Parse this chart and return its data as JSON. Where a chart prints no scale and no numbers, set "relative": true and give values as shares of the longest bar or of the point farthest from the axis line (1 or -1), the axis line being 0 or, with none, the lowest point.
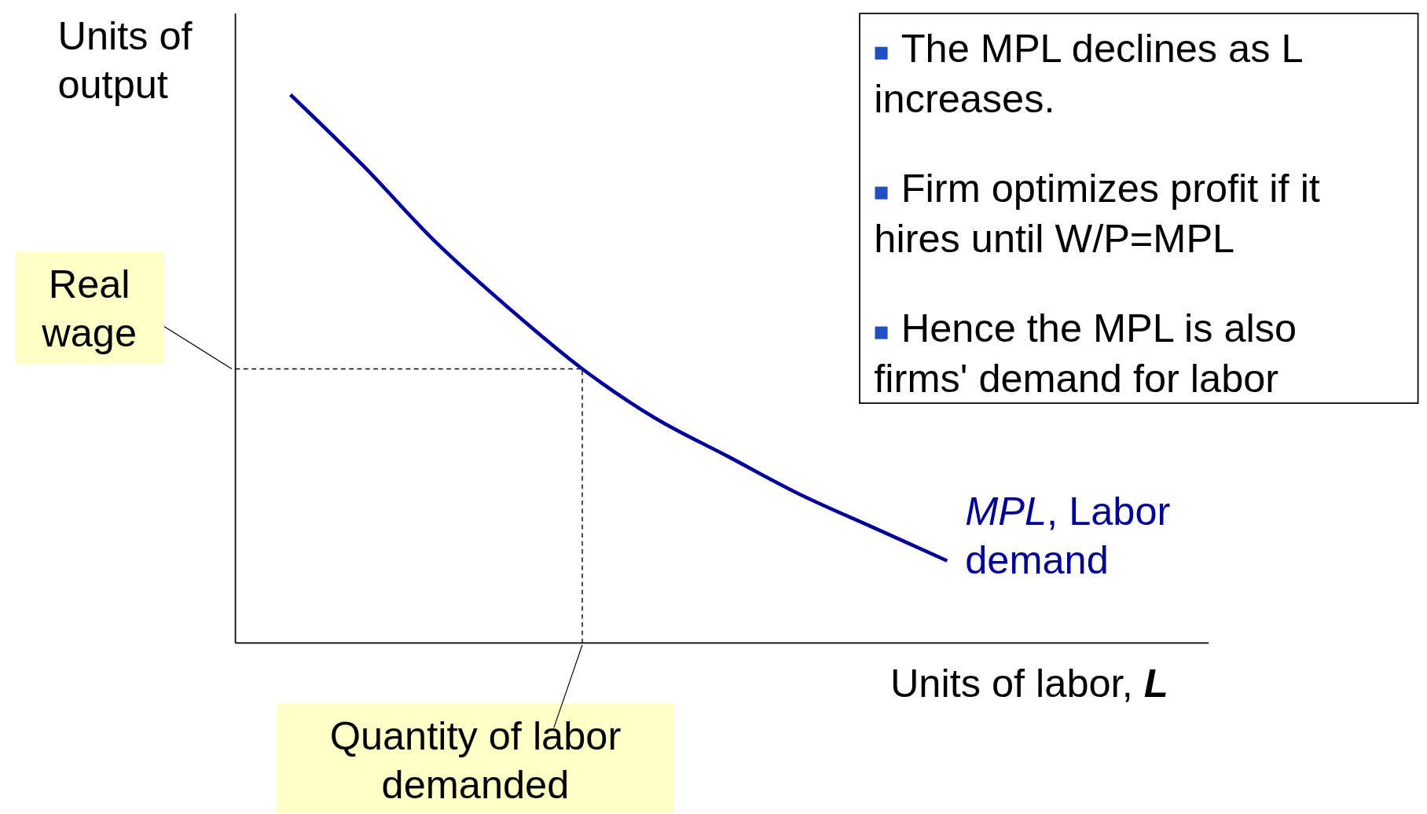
{
  "chart_data": {
    "type": "line",
    "relative": true,
    "ylabel": "Units of output",
    "xlabel": "Units of labor, L",
    "categories": [
      null,
      null,
      null,
      null,
      null,
      null,
      null,
      null,
      null,
      null
    ],
    "series": [
      {
        "name": "MPL, Labor demand",
        "color": "#000099",
        "values": [
          1,
          0.87,
          0.73,
          0.61,
          0.5,
          0.41,
          0.34,
          0.27,
          0.21,
          0.15
        ]
      }
    ],
    "ref_lines": [
      {
        "axis": "y",
        "value": 0.5,
        "label": "Real wage",
        "line_style": "dashed"
      }
    ],
    "annotations": [
      "Quantity of labor demanded",
      "The MPL declines as L increases.",
      "Firm optimizes profit if it hires until W/P=MPL",
      "Hence the MPL is also firms' demand for labor"
    ],
    "line_style": "solid"
  }
}
